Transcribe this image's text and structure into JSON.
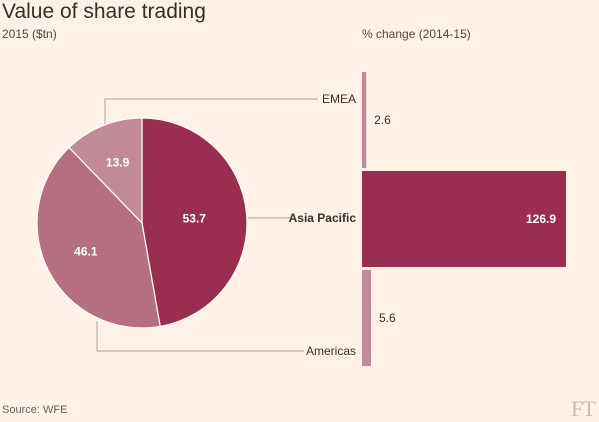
{
  "title": "Value of share trading",
  "subtitle": "2015 ($tn)",
  "subtitle_right": "% change (2014-15)",
  "source": "Source: WFE",
  "logo": "FT",
  "colors": {
    "background": "#fff1e5",
    "dark": "#9a2e51",
    "medium": "#b56f83",
    "light": "#c08a97",
    "line": "#a9a29c"
  },
  "chart_data": [
    {
      "type": "pie",
      "title": "2015 ($tn)",
      "categories": [
        "Asia Pacific",
        "Americas",
        "EMEA"
      ],
      "values": [
        53.7,
        46.1,
        13.9
      ],
      "value_labels": [
        "53.7",
        "46.1",
        "13.9"
      ]
    },
    {
      "type": "bar",
      "orientation": "horizontal",
      "title": "% change (2014-15)",
      "categories": [
        "EMEA",
        "Asia Pacific",
        "Americas"
      ],
      "values": [
        2.6,
        126.9,
        5.6
      ],
      "value_labels": [
        "2.6",
        "126.9",
        "5.6"
      ]
    }
  ]
}
